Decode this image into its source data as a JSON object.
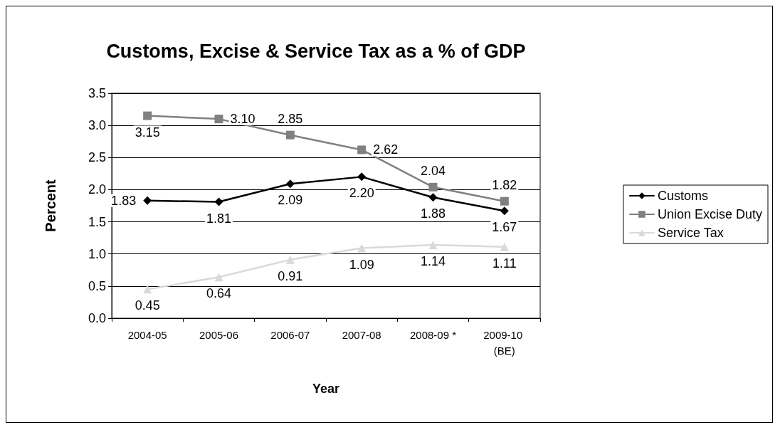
{
  "chart_data": {
    "type": "line",
    "title": "Customs, Excise & Service Tax as a % of GDP",
    "xlabel": "Year",
    "ylabel": "Percent",
    "categories": [
      "2004-05",
      "2005-06",
      "2006-07",
      "2007-08",
      "2008-09 *",
      "2009-10 (BE)"
    ],
    "series": [
      {
        "name": "Customs",
        "color": "#000000",
        "marker": "diamond",
        "values": [
          1.83,
          1.81,
          2.09,
          2.2,
          1.88,
          1.67
        ],
        "value_labels": [
          "1.83",
          "1.81",
          "2.09",
          "2.20",
          "1.88",
          "1.67"
        ]
      },
      {
        "name": "Union Excise Duty",
        "color": "#808080",
        "marker": "square",
        "values": [
          3.15,
          3.1,
          2.85,
          2.62,
          2.04,
          1.82
        ],
        "value_labels": [
          "3.15",
          "3.10",
          "2.85",
          "2.62",
          "2.04",
          "1.82"
        ]
      },
      {
        "name": "Service Tax",
        "color": "#d9d9d9",
        "marker": "triangle",
        "values": [
          0.45,
          0.64,
          0.91,
          1.09,
          1.14,
          1.11
        ],
        "value_labels": [
          "0.45",
          "0.64",
          "0.91",
          "1.09",
          "1.14",
          "1.11"
        ]
      }
    ],
    "ylim": [
      0,
      3.5
    ],
    "yticks": [
      {
        "value": 0,
        "label": "0.0"
      },
      {
        "value": 0.5,
        "label": "0.5"
      },
      {
        "value": 1,
        "label": "1.0"
      },
      {
        "value": 1.5,
        "label": "1.5"
      },
      {
        "value": 2,
        "label": "2.0"
      },
      {
        "value": 2.5,
        "label": "2.5"
      },
      {
        "value": 3,
        "label": "3.0"
      },
      {
        "value": 3.5,
        "label": "3.5"
      }
    ],
    "grid": "y",
    "legend": "right",
    "line_style": "solid"
  }
}
